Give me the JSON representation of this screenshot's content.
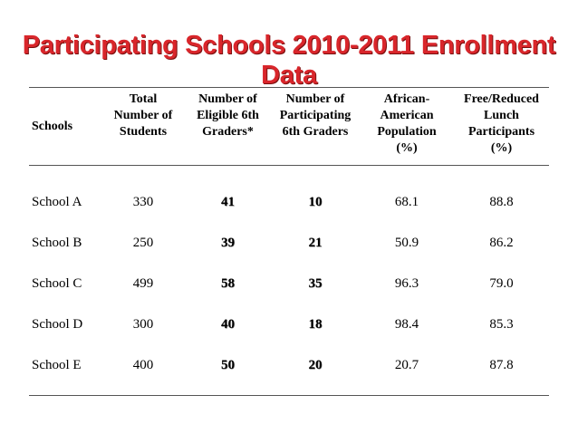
{
  "title": "Participating Schools 2010-2011 Enrollment Data",
  "table": {
    "headers": [
      "Schools",
      "Total\nNumber of\nStudents",
      "Number of\nEligible 6th\nGraders*",
      "Number of\nParticipating\n6th Graders",
      "African-\nAmerican\nPopulation\n(%)",
      "Free/Reduced\nLunch\nParticipants\n(%)"
    ],
    "rows": [
      [
        "School A",
        "330",
        "41",
        "10",
        "68.1",
        "88.8"
      ],
      [
        "School B",
        "250",
        "39",
        "21",
        "50.9",
        "86.2"
      ],
      [
        "School C",
        "499",
        "58",
        "35",
        "96.3",
        "79.0"
      ],
      [
        "School D",
        "300",
        "40",
        "18",
        "98.4",
        "85.3"
      ],
      [
        "School E",
        "400",
        "50",
        "20",
        "20.7",
        "87.8"
      ]
    ]
  }
}
